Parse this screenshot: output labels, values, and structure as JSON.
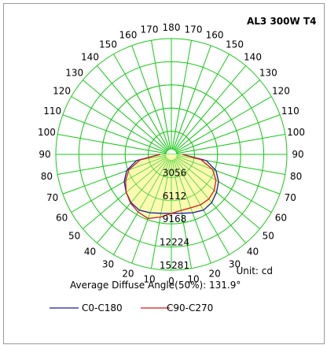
{
  "header": {
    "title": "AL3 300W T4"
  },
  "chart_data": {
    "type": "polar",
    "title": "AL3 300W T4",
    "unit_label": "Unit: cd",
    "summary": "Average Diffuse Angle(50%): 131.9°",
    "angle_labels_left": [
      "0",
      "10",
      "20",
      "30",
      "40",
      "50",
      "60",
      "70",
      "80",
      "90",
      "100",
      "110",
      "120",
      "130",
      "140",
      "150",
      "160",
      "170",
      "180"
    ],
    "angle_labels_right": [
      "10",
      "20",
      "30",
      "40",
      "50",
      "60",
      "70",
      "80",
      "90",
      "100",
      "110",
      "120",
      "130",
      "140",
      "150",
      "160",
      "170"
    ],
    "radial_ticks": [
      "3056",
      "6112",
      "9168",
      "12224",
      "15281"
    ],
    "rmax": 15281,
    "series": [
      {
        "name": "C0-C180",
        "color": "#1a1aa6",
        "samples": [
          {
            "theta": 0,
            "cd": 7800
          },
          {
            "theta": 10,
            "cd": 7900
          },
          {
            "theta": 20,
            "cd": 8200
          },
          {
            "theta": 30,
            "cd": 8500
          },
          {
            "theta": 40,
            "cd": 8300
          },
          {
            "theta": 50,
            "cd": 7800
          },
          {
            "theta": 60,
            "cd": 7200
          },
          {
            "theta": 70,
            "cd": 6300
          },
          {
            "theta": 80,
            "cd": 4700
          },
          {
            "theta": 90,
            "cd": 1500
          }
        ]
      },
      {
        "name": "C90-C270",
        "color": "#d41a1a",
        "samples": [
          {
            "theta": -90,
            "cd": 1500
          },
          {
            "theta": -80,
            "cd": 4200
          },
          {
            "theta": -70,
            "cd": 6000
          },
          {
            "theta": -60,
            "cd": 7000
          },
          {
            "theta": -50,
            "cd": 7800
          },
          {
            "theta": -40,
            "cd": 8400
          },
          {
            "theta": -30,
            "cd": 8800
          },
          {
            "theta": -20,
            "cd": 9000
          },
          {
            "theta": -10,
            "cd": 8400
          },
          {
            "theta": 0,
            "cd": 7800
          },
          {
            "theta": 10,
            "cd": 7500
          },
          {
            "theta": 20,
            "cd": 7500
          },
          {
            "theta": 30,
            "cd": 7700
          },
          {
            "theta": 40,
            "cd": 7700
          },
          {
            "theta": 50,
            "cd": 7400
          },
          {
            "theta": 60,
            "cd": 6800
          },
          {
            "theta": 70,
            "cd": 5800
          },
          {
            "theta": 80,
            "cd": 4000
          },
          {
            "theta": 90,
            "cd": 1500
          }
        ]
      }
    ],
    "colors": {
      "grid": "#18c818",
      "fill": "#fafab0"
    }
  }
}
